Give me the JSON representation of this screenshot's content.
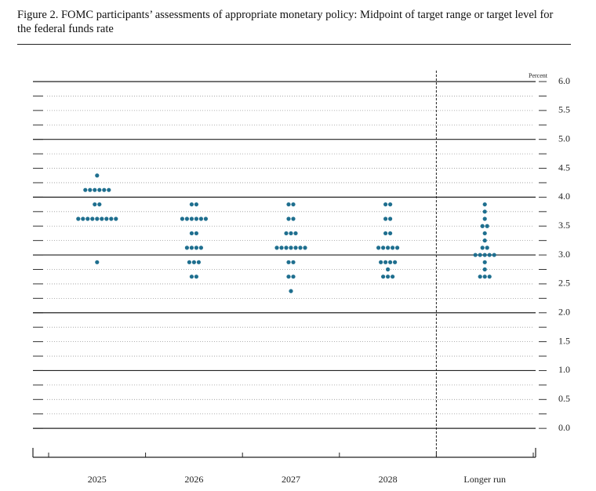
{
  "chart_data": {
    "type": "dot",
    "title": "Figure 2. FOMC participants’ assessments of appropriate monetary policy: Midpoint of target range or target level for the federal funds rate",
    "y_axis_label": "Percent",
    "categories": [
      "2025",
      "2026",
      "2027",
      "2028",
      "Longer run"
    ],
    "rates": [
      [
        4.375,
        4.125,
        3.875,
        3.625,
        2.875
      ],
      [
        3.875,
        3.625,
        3.375,
        3.125,
        2.875,
        2.625
      ],
      [
        3.875,
        3.625,
        3.375,
        3.125,
        2.875,
        2.625,
        2.375
      ],
      [
        3.875,
        3.625,
        3.375,
        3.125,
        2.875,
        2.75,
        2.625
      ],
      [
        3.875,
        3.75,
        3.625,
        3.5,
        3.375,
        3.25,
        3.125,
        3.0,
        2.875,
        2.75,
        2.625
      ]
    ],
    "counts": [
      [
        1,
        6,
        2,
        9,
        1
      ],
      [
        2,
        6,
        2,
        4,
        3,
        2
      ],
      [
        2,
        2,
        3,
        7,
        2,
        2,
        1
      ],
      [
        2,
        2,
        2,
        5,
        4,
        1,
        3
      ],
      [
        1,
        1,
        1,
        2,
        1,
        1,
        2,
        5,
        1,
        1,
        3
      ]
    ],
    "color": "#1f6f8f",
    "ylim": [
      -0.5,
      6
    ],
    "yticks": [
      {
        "value": 0,
        "label": "0.0"
      },
      0.5,
      {
        "value": 1,
        "label": "1.0"
      },
      1.5,
      {
        "value": 2,
        "label": "2.0"
      },
      2.5,
      {
        "value": 3,
        "label": "3.0"
      },
      3.5,
      {
        "value": 4,
        "label": "4.0"
      },
      4.5,
      {
        "value": 5,
        "label": "5.0"
      },
      5.5,
      {
        "value": 6,
        "label": "6.0"
      }
    ],
    "minor_yticks": [
      0.25,
      0.75,
      1.25,
      1.75,
      2.25,
      2.75,
      3.25,
      3.75,
      4.25,
      4.75,
      5.25,
      5.75
    ],
    "grid": true
  }
}
